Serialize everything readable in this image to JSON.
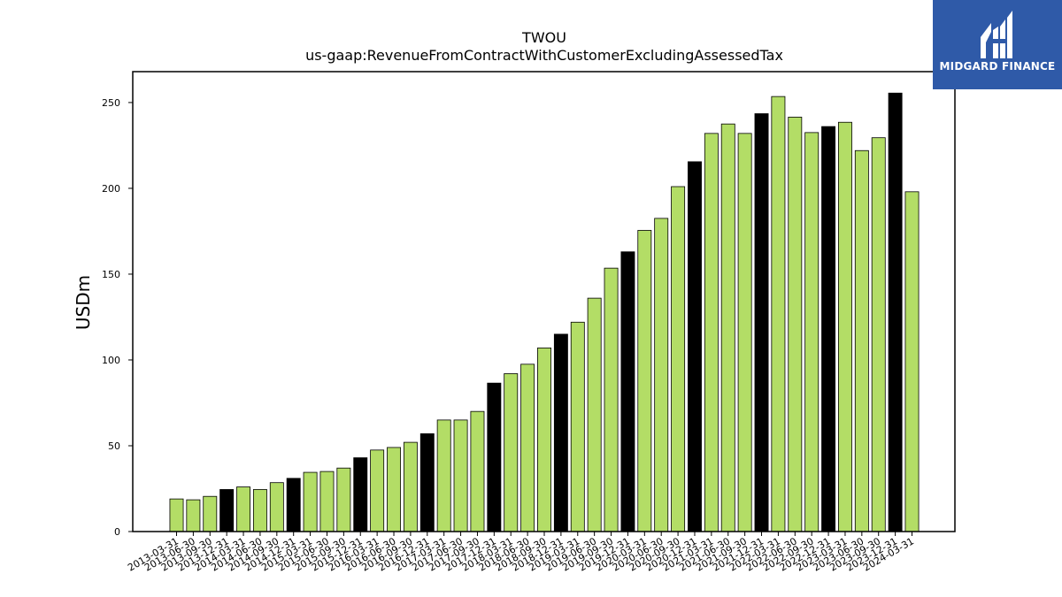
{
  "chart_data": {
    "type": "bar",
    "title": "TWOU",
    "subtitle": "us-gaap:RevenueFromContractWithCustomerExcludingAssessedTax",
    "xlabel": "",
    "ylabel": "USDm",
    "ylim": [
      0,
      268
    ],
    "yticks": [
      0,
      50,
      100,
      150,
      200,
      250
    ],
    "grid": false,
    "colors": {
      "quarter": "#b3dd66",
      "year_end": "#000000",
      "edge": "#000000"
    },
    "categories": [
      "2013-03-31",
      "2013-06-30",
      "2013-09-30",
      "2013-12-31",
      "2014-03-31",
      "2014-06-30",
      "2014-09-30",
      "2014-12-31",
      "2015-03-31",
      "2015-06-30",
      "2015-09-30",
      "2015-12-31",
      "2016-03-31",
      "2016-06-30",
      "2016-09-30",
      "2016-12-31",
      "2017-03-31",
      "2017-06-30",
      "2017-09-30",
      "2017-12-31",
      "2018-03-31",
      "2018-06-30",
      "2018-09-30",
      "2018-12-31",
      "2019-03-31",
      "2019-06-30",
      "2019-09-30",
      "2019-12-31",
      "2020-03-31",
      "2020-06-30",
      "2020-09-30",
      "2020-12-31",
      "2021-03-31",
      "2021-06-30",
      "2021-09-30",
      "2021-12-31",
      "2022-03-31",
      "2022-06-30",
      "2022-09-30",
      "2022-12-31",
      "2023-03-31",
      "2023-06-30",
      "2023-09-30",
      "2023-12-31",
      "2024-03-31"
    ],
    "values": [
      19,
      18.5,
      20.5,
      24.5,
      26,
      24.5,
      28.5,
      31,
      34.5,
      35,
      37,
      43,
      47.5,
      49,
      52,
      57,
      65,
      65,
      70,
      86.5,
      92,
      97.5,
      107,
      115,
      122,
      136,
      153.5,
      163,
      175.5,
      182.5,
      201,
      215.5,
      232,
      237.5,
      232,
      243.5,
      253.5,
      241.5,
      232.5,
      236,
      238.5,
      222,
      229.5,
      255.5,
      198
    ],
    "year_end_flags": [
      false,
      false,
      false,
      true,
      false,
      false,
      false,
      true,
      false,
      false,
      false,
      true,
      false,
      false,
      false,
      true,
      false,
      false,
      false,
      true,
      false,
      false,
      false,
      true,
      false,
      false,
      false,
      true,
      false,
      false,
      false,
      true,
      false,
      false,
      false,
      true,
      false,
      false,
      false,
      true,
      false,
      false,
      false,
      true,
      false
    ]
  },
  "logo": {
    "text": "MIDGARD FINANCE",
    "icon": "midgard-logo-icon"
  }
}
